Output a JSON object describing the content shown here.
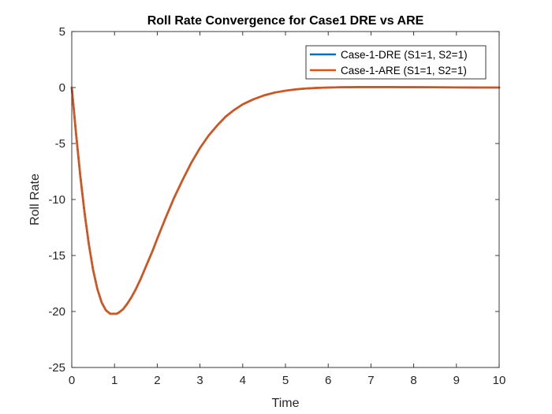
{
  "chart_data": {
    "type": "line",
    "title": "Roll Rate Convergence for Case1 DRE vs ARE",
    "xlabel": "Time",
    "ylabel": "Roll Rate",
    "xlim": [
      0,
      10
    ],
    "ylim": [
      -25,
      5
    ],
    "xticks": [
      0,
      1,
      2,
      3,
      4,
      5,
      6,
      7,
      8,
      9,
      10
    ],
    "yticks": [
      -25,
      -20,
      -15,
      -10,
      -5,
      0,
      5
    ],
    "xtick_labels": [
      "0",
      "1",
      "2",
      "3",
      "4",
      "5",
      "6",
      "7",
      "8",
      "9",
      "10"
    ],
    "ytick_labels": [
      "-25",
      "-20",
      "-15",
      "-10",
      "-5",
      "0",
      "5"
    ],
    "grid": false,
    "legend_position": "top-right",
    "x": [
      0,
      0.1,
      0.2,
      0.3,
      0.4,
      0.5,
      0.6,
      0.7,
      0.8,
      0.9,
      1.0,
      1.05,
      1.1,
      1.2,
      1.3,
      1.4,
      1.5,
      1.6,
      1.7,
      1.8,
      1.9,
      2.0,
      2.2,
      2.4,
      2.6,
      2.8,
      3.0,
      3.2,
      3.4,
      3.6,
      3.8,
      4.0,
      4.25,
      4.5,
      4.75,
      5.0,
      5.25,
      5.5,
      5.75,
      6.0,
      6.25,
      6.5,
      6.75,
      7.0,
      7.25,
      7.5,
      7.75,
      8.0,
      8.5,
      9.0,
      9.5,
      10.0
    ],
    "series": [
      {
        "name": "Case-1-DRE (S1=1, S2=1)",
        "color": "#0072BD",
        "values": [
          0,
          -4.1,
          -7.9,
          -11.2,
          -14.0,
          -16.3,
          -18.0,
          -19.2,
          -19.9,
          -20.2,
          -20.2,
          -20.2,
          -20.1,
          -19.8,
          -19.3,
          -18.7,
          -18.0,
          -17.2,
          -16.3,
          -15.4,
          -14.5,
          -13.5,
          -11.6,
          -9.8,
          -8.2,
          -6.7,
          -5.4,
          -4.3,
          -3.4,
          -2.6,
          -2.0,
          -1.5,
          -1.05,
          -0.7,
          -0.45,
          -0.28,
          -0.16,
          -0.08,
          -0.03,
          0.0,
          0.02,
          0.03,
          0.04,
          0.04,
          0.04,
          0.04,
          0.03,
          0.03,
          0.02,
          0.01,
          0.0,
          0.0
        ]
      },
      {
        "name": "Case-1-ARE (S1=1, S2=1)",
        "color": "#D95319",
        "values": [
          0,
          -4.1,
          -7.9,
          -11.2,
          -14.0,
          -16.3,
          -18.0,
          -19.2,
          -19.9,
          -20.2,
          -20.2,
          -20.2,
          -20.1,
          -19.8,
          -19.3,
          -18.7,
          -18.0,
          -17.2,
          -16.3,
          -15.4,
          -14.5,
          -13.5,
          -11.6,
          -9.8,
          -8.2,
          -6.7,
          -5.4,
          -4.3,
          -3.4,
          -2.6,
          -2.0,
          -1.5,
          -1.05,
          -0.7,
          -0.45,
          -0.28,
          -0.16,
          -0.08,
          -0.03,
          0.0,
          0.02,
          0.03,
          0.04,
          0.04,
          0.04,
          0.04,
          0.03,
          0.03,
          0.02,
          0.01,
          0.0,
          0.0
        ]
      }
    ]
  }
}
